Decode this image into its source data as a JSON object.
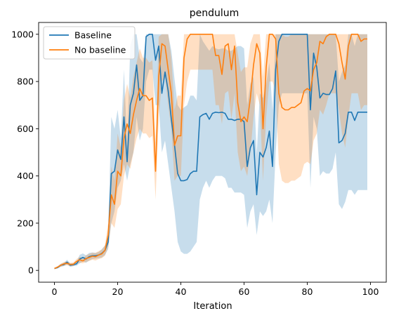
{
  "chart_data": {
    "type": "line",
    "title": "pendulum",
    "xlabel": "Iteration",
    "ylabel": "",
    "xlim": [
      -5,
      105
    ],
    "ylim": [
      -50,
      1050
    ],
    "xticks": [
      0,
      20,
      40,
      60,
      80,
      100
    ],
    "yticks": [
      0,
      200,
      400,
      600,
      800,
      1000
    ],
    "grid": false,
    "legend": "top-left",
    "x": [
      0,
      1,
      2,
      3,
      4,
      5,
      6,
      7,
      8,
      9,
      10,
      11,
      12,
      13,
      14,
      15,
      16,
      17,
      18,
      19,
      20,
      21,
      22,
      23,
      24,
      25,
      26,
      27,
      28,
      29,
      30,
      31,
      32,
      33,
      34,
      35,
      36,
      37,
      38,
      39,
      40,
      41,
      42,
      43,
      44,
      45,
      46,
      47,
      48,
      49,
      50,
      51,
      52,
      53,
      54,
      55,
      56,
      57,
      58,
      59,
      60,
      61,
      62,
      63,
      64,
      65,
      66,
      67,
      68,
      69,
      70,
      71,
      72,
      73,
      74,
      75,
      76,
      77,
      78,
      79,
      80,
      81,
      82,
      83,
      84,
      85,
      86,
      87,
      88,
      89,
      90,
      91,
      92,
      93,
      94,
      95,
      96,
      97,
      98,
      99
    ],
    "series": [
      {
        "name": "Baseline",
        "color": "#1f77b4",
        "values": [
          8,
          12,
          22,
          25,
          35,
          22,
          24,
          28,
          48,
          55,
          48,
          58,
          62,
          62,
          65,
          72,
          85,
          120,
          410,
          420,
          510,
          470,
          650,
          460,
          700,
          750,
          870,
          720,
          740,
          990,
          1000,
          1000,
          890,
          950,
          750,
          840,
          760,
          640,
          530,
          410,
          380,
          380,
          385,
          410,
          420,
          420,
          650,
          660,
          665,
          640,
          665,
          670,
          668,
          670,
          665,
          640,
          640,
          635,
          640,
          640,
          630,
          440,
          520,
          550,
          320,
          500,
          480,
          520,
          590,
          440,
          850,
          970,
          1000,
          1000,
          1000,
          1000,
          1000,
          1000,
          1000,
          1000,
          1000,
          680,
          920,
          860,
          730,
          750,
          745,
          745,
          770,
          845,
          540,
          550,
          580,
          670,
          670,
          635,
          670,
          670,
          670,
          670
        ],
        "band_low": [
          5,
          8,
          15,
          18,
          25,
          15,
          18,
          20,
          30,
          38,
          32,
          42,
          48,
          50,
          52,
          55,
          65,
          90,
          200,
          250,
          350,
          380,
          450,
          380,
          450,
          500,
          650,
          550,
          600,
          800,
          850,
          850,
          700,
          700,
          500,
          550,
          450,
          350,
          250,
          120,
          80,
          70,
          70,
          80,
          100,
          120,
          300,
          350,
          380,
          350,
          380,
          400,
          400,
          400,
          390,
          350,
          350,
          330,
          330,
          330,
          320,
          180,
          250,
          280,
          150,
          250,
          230,
          250,
          300,
          200,
          500,
          700,
          750,
          750,
          750,
          750,
          750,
          750,
          750,
          750,
          750,
          350,
          650,
          600,
          400,
          420,
          410,
          410,
          430,
          500,
          280,
          260,
          290,
          340,
          340,
          320,
          340,
          340,
          340,
          340
        ],
        "band_high": [
          11,
          16,
          28,
          32,
          45,
          30,
          30,
          36,
          66,
          72,
          64,
          74,
          76,
          74,
          78,
          90,
          105,
          150,
          650,
          600,
          680,
          560,
          850,
          540,
          950,
          1000,
          1000,
          900,
          880,
          1000,
          1000,
          1000,
          1000,
          1000,
          1000,
          1000,
          1000,
          930,
          810,
          700,
          680,
          690,
          700,
          740,
          740,
          720,
          1000,
          970,
          950,
          930,
          950,
          940,
          936,
          940,
          940,
          930,
          930,
          940,
          950,
          950,
          940,
          700,
          790,
          820,
          490,
          750,
          730,
          790,
          880,
          680,
          1000,
          1000,
          1000,
          1000,
          1000,
          1000,
          1000,
          1000,
          1000,
          1000,
          1000,
          1000,
          1000,
          1000,
          1000,
          1000,
          1000,
          1000,
          1000,
          1000,
          800,
          840,
          870,
          1000,
          1000,
          950,
          1000,
          1000,
          1000,
          1000
        ]
      },
      {
        "name": "No baseline",
        "color": "#ff7f0e",
        "values": [
          8,
          14,
          22,
          28,
          30,
          25,
          26,
          38,
          45,
          40,
          50,
          55,
          60,
          58,
          65,
          70,
          85,
          150,
          320,
          280,
          420,
          400,
          560,
          620,
          580,
          660,
          720,
          770,
          740,
          740,
          720,
          730,
          420,
          820,
          960,
          950,
          850,
          750,
          530,
          570,
          570,
          900,
          980,
          1000,
          1000,
          1000,
          1000,
          1000,
          1000,
          1000,
          1000,
          910,
          910,
          830,
          950,
          960,
          850,
          950,
          710,
          630,
          650,
          630,
          730,
          870,
          960,
          920,
          600,
          860,
          1000,
          1000,
          980,
          750,
          690,
          680,
          680,
          690,
          690,
          700,
          710,
          760,
          770,
          760,
          850,
          880,
          970,
          960,
          990,
          1000,
          1000,
          1000,
          960,
          880,
          810,
          950,
          1000,
          1000,
          1000,
          970,
          980,
          980
        ],
        "band_low": [
          5,
          10,
          16,
          20,
          22,
          18,
          18,
          28,
          32,
          30,
          36,
          40,
          45,
          42,
          48,
          52,
          62,
          100,
          200,
          180,
          260,
          280,
          400,
          450,
          430,
          500,
          560,
          600,
          580,
          580,
          560,
          570,
          300,
          650,
          800,
          820,
          700,
          600,
          380,
          400,
          400,
          700,
          800,
          850,
          850,
          850,
          850,
          850,
          850,
          850,
          850,
          700,
          700,
          620,
          750,
          760,
          640,
          750,
          500,
          420,
          440,
          400,
          500,
          650,
          750,
          700,
          380,
          650,
          800,
          800,
          760,
          450,
          380,
          370,
          370,
          380,
          380,
          390,
          400,
          450,
          460,
          450,
          550,
          580,
          680,
          660,
          700,
          750,
          750,
          750,
          680,
          580,
          520,
          650,
          750,
          750,
          750,
          680,
          700,
          700
        ],
        "band_high": [
          11,
          18,
          28,
          36,
          38,
          32,
          34,
          48,
          58,
          50,
          64,
          70,
          75,
          74,
          82,
          88,
          108,
          200,
          440,
          380,
          580,
          520,
          720,
          790,
          730,
          820,
          880,
          940,
          900,
          900,
          880,
          890,
          540,
          990,
          1000,
          1000,
          1000,
          900,
          680,
          740,
          740,
          1000,
          1000,
          1000,
          1000,
          1000,
          1000,
          1000,
          1000,
          1000,
          1000,
          1000,
          1000,
          1000,
          1000,
          1000,
          1000,
          1000,
          920,
          840,
          860,
          860,
          960,
          1000,
          1000,
          1000,
          820,
          1000,
          1000,
          1000,
          1000,
          1000,
          1000,
          990,
          990,
          1000,
          1000,
          1000,
          1000,
          1000,
          1000,
          1000,
          1000,
          1000,
          1000,
          1000,
          1000,
          1000,
          1000,
          1000,
          1000,
          1000,
          1000,
          1000,
          1000,
          1000,
          1000,
          1000,
          1000,
          1000
        ]
      }
    ]
  }
}
